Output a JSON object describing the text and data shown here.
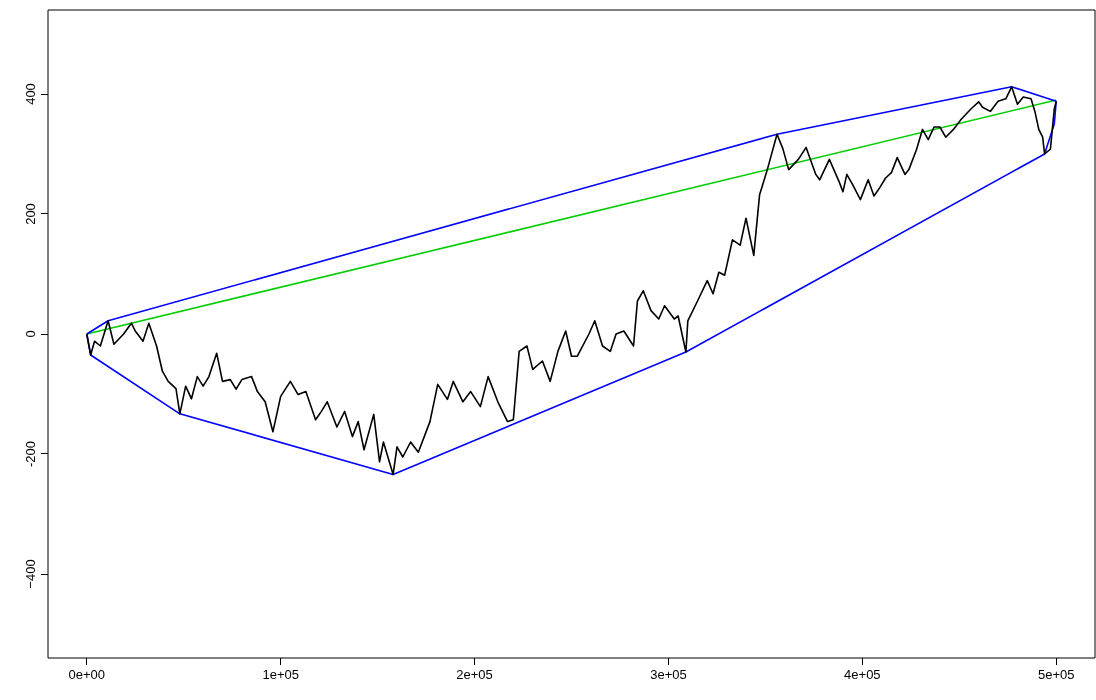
{
  "chart_data": {
    "type": "line",
    "xlim": [
      -20000,
      520000
    ],
    "ylim": [
      -540,
      540
    ],
    "xticks": [
      {
        "value": 0,
        "label": "0e+00"
      },
      {
        "value": 100000,
        "label": "1e+05"
      },
      {
        "value": 200000,
        "label": "2e+05"
      },
      {
        "value": 300000,
        "label": "3e+05"
      },
      {
        "value": 400000,
        "label": "4e+05"
      },
      {
        "value": 500000,
        "label": "5e+05"
      }
    ],
    "yticks": [
      {
        "value": -400,
        "label": "−400"
      },
      -200,
      0,
      200,
      400
    ],
    "grid": false,
    "legend": false,
    "marker": "none",
    "line_style": "solid",
    "series": [
      {
        "type": "line",
        "color": "#000000",
        "x": [
          0,
          2000,
          4000,
          7000,
          11000,
          14000,
          19000,
          23000,
          25000,
          29000,
          32000,
          36000,
          39000,
          42000,
          46000,
          48000,
          51000,
          54000,
          57000,
          60000,
          63000,
          67000,
          70000,
          74000,
          77000,
          80000,
          85000,
          88000,
          92000,
          96000,
          100000,
          105000,
          109000,
          113000,
          118000,
          121000,
          124000,
          129000,
          133000,
          137000,
          140000,
          143000,
          148000,
          151000,
          153000,
          158000,
          160000,
          163000,
          167000,
          171000,
          177000,
          181000,
          186000,
          189000,
          194000,
          198000,
          203000,
          207000,
          212000,
          217000,
          220000,
          223000,
          227000,
          230000,
          235000,
          239000,
          243000,
          247000,
          250000,
          253000,
          259000,
          262000,
          266000,
          270000,
          273000,
          277000,
          282000,
          284000,
          287000,
          291000,
          295000,
          298000,
          303000,
          305000,
          309000,
          310000,
          315000,
          320000,
          323000,
          326000,
          329000,
          333000,
          337000,
          340000,
          344000,
          347000,
          351000,
          356000,
          359000,
          362000,
          367000,
          371000,
          376000,
          378000,
          383000,
          388000,
          390000,
          392000,
          395000,
          399000,
          403000,
          406000,
          409000,
          412000,
          415000,
          418000,
          422000,
          424000,
          428000,
          431000,
          434000,
          437000,
          440000,
          443000,
          447000,
          451000,
          456000,
          460000,
          462000,
          466000,
          470000,
          474000,
          477000,
          480000,
          483000,
          487000,
          489000,
          491000,
          493000,
          494000,
          497000,
          499000,
          500000
        ],
        "values": [
          0,
          -35,
          -12,
          -20,
          22,
          -17,
          0,
          18,
          5,
          -12,
          18,
          -20,
          -62,
          -79,
          -91,
          -133,
          -87,
          -108,
          -71,
          -87,
          -71,
          -32,
          -79,
          -76,
          -92,
          -76,
          -71,
          -96,
          -113,
          -163,
          -104,
          -79,
          -101,
          -96,
          -143,
          -129,
          -113,
          -155,
          -129,
          -171,
          -146,
          -193,
          -134,
          -213,
          -180,
          -234,
          -188,
          -205,
          -180,
          -197,
          -146,
          -84,
          -109,
          -79,
          -113,
          -96,
          -121,
          -71,
          -113,
          -146,
          -143,
          -29,
          -20,
          -59,
          -45,
          -79,
          -29,
          5,
          -37,
          -37,
          0,
          22,
          -20,
          -29,
          0,
          5,
          -20,
          55,
          72,
          39,
          25,
          47,
          25,
          30,
          -30,
          22,
          55,
          89,
          67,
          103,
          98,
          157,
          148,
          193,
          131,
          232,
          274,
          333,
          309,
          274,
          291,
          311,
          266,
          257,
          291,
          254,
          237,
          266,
          249,
          224,
          257,
          230,
          244,
          260,
          269,
          294,
          266,
          274,
          308,
          341,
          324,
          345,
          345,
          328,
          341,
          358,
          375,
          387,
          378,
          371,
          388,
          392,
          412,
          383,
          395,
          392,
          371,
          341,
          328,
          300,
          308,
          375,
          388
        ]
      },
      {
        "type": "line",
        "color": "#0000ff",
        "x": [
          0,
          2000,
          48000,
          158000,
          309000,
          494000,
          499000,
          500000
        ],
        "values": [
          0,
          -35,
          -133,
          -234,
          -30,
          300,
          350,
          388
        ]
      },
      {
        "type": "line",
        "color": "#0000ff",
        "x": [
          0,
          11000,
          356000,
          477000,
          500000
        ],
        "values": [
          0,
          22,
          333,
          412,
          388
        ]
      },
      {
        "type": "line",
        "color": "#00cd00",
        "x": [
          0,
          500000
        ],
        "values": [
          0,
          390
        ]
      }
    ]
  }
}
